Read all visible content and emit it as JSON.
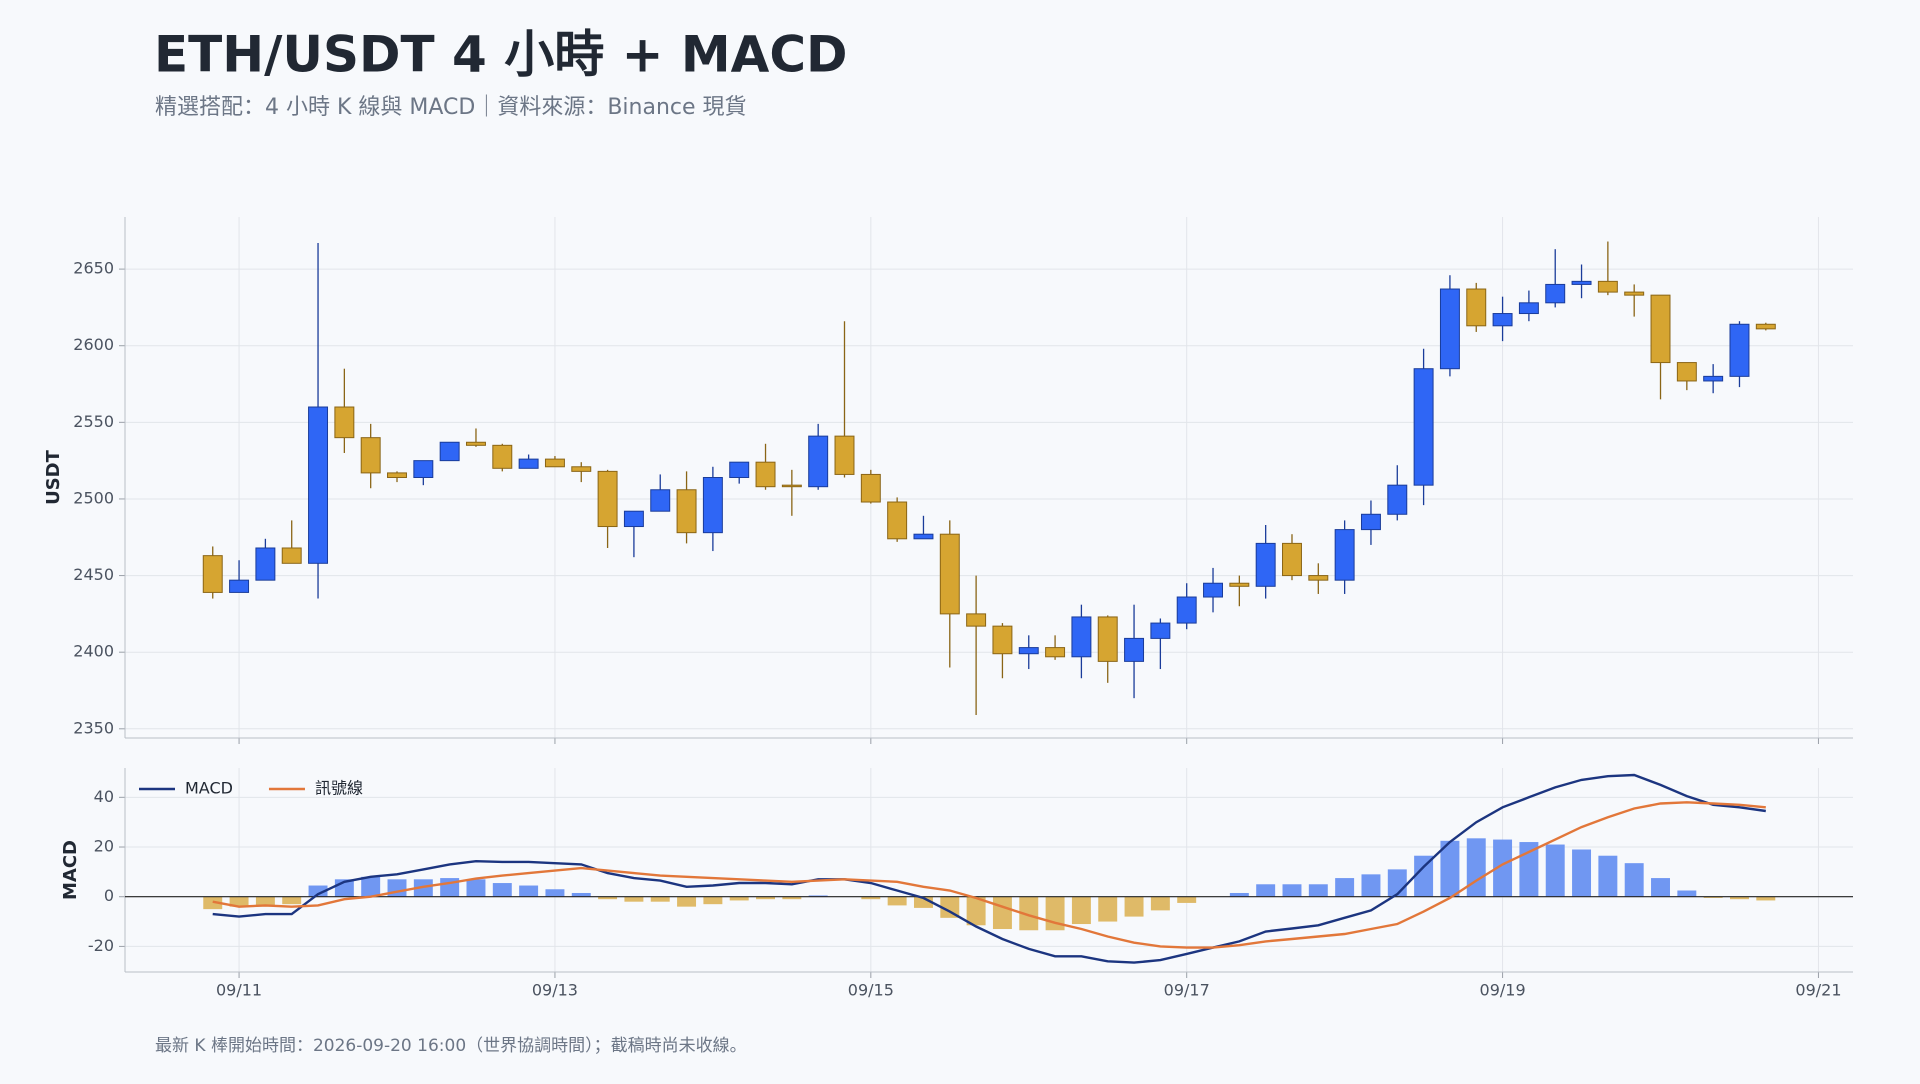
{
  "title": "ETH/USDT 4 小時 + MACD",
  "subtitle": "精選搭配：4 小時 K 線與 MACD｜資料來源：Binance 現貨",
  "footnote": "最新 K 棒開始時間：2026-09-20 16:00（世界協調時間）；截稿時尚未收線。",
  "chart_data": [
    {
      "type": "candlestick",
      "ylabel": "USDT",
      "x": [
        "09/10 20:00",
        "09/11 00:00",
        "09/11 04:00",
        "09/11 08:00",
        "09/11 12:00",
        "09/11 16:00",
        "09/11 20:00",
        "09/12 00:00",
        "09/12 04:00",
        "09/12 08:00",
        "09/12 12:00",
        "09/12 16:00",
        "09/12 20:00",
        "09/13 00:00",
        "09/13 04:00",
        "09/13 08:00",
        "09/13 12:00",
        "09/13 16:00",
        "09/13 20:00",
        "09/14 00:00",
        "09/14 04:00",
        "09/14 08:00",
        "09/14 12:00",
        "09/14 16:00",
        "09/14 20:00",
        "09/15 00:00",
        "09/15 04:00",
        "09/15 08:00",
        "09/15 12:00",
        "09/15 16:00",
        "09/15 20:00",
        "09/16 00:00",
        "09/16 04:00",
        "09/16 08:00",
        "09/16 12:00",
        "09/16 16:00",
        "09/16 20:00",
        "09/17 00:00",
        "09/17 04:00",
        "09/17 08:00",
        "09/17 12:00",
        "09/17 16:00",
        "09/17 20:00",
        "09/18 00:00",
        "09/18 04:00",
        "09/18 08:00",
        "09/18 12:00",
        "09/18 16:00",
        "09/18 20:00",
        "09/19 00:00",
        "09/19 04:00",
        "09/19 08:00",
        "09/19 12:00",
        "09/19 16:00",
        "09/19 20:00",
        "09/20 00:00",
        "09/20 04:00",
        "09/20 08:00",
        "09/20 12:00",
        "09/20 16:00"
      ],
      "open": [
        2463,
        2439,
        2447,
        2468,
        2458,
        2560,
        2540,
        2517,
        2514,
        2525,
        2537,
        2535,
        2520,
        2526,
        2521,
        2518,
        2482,
        2492,
        2506,
        2478,
        2514,
        2524,
        2509,
        2508,
        2541,
        2516,
        2498,
        2474,
        2477,
        2425,
        2417,
        2399,
        2403,
        2397,
        2423,
        2394,
        2409,
        2419,
        2436,
        2445,
        2443,
        2471,
        2450,
        2447,
        2480,
        2490,
        2509,
        2585,
        2637,
        2613,
        2621,
        2628,
        2640,
        2642,
        2635,
        2633,
        2589,
        2577,
        2580,
        2614
      ],
      "high": [
        2469,
        2460,
        2474,
        2486,
        2667,
        2585,
        2549,
        2518,
        2525,
        2537,
        2546,
        2536,
        2529,
        2528,
        2524,
        2519,
        2492,
        2516,
        2518,
        2521,
        2524,
        2536,
        2519,
        2549,
        2616,
        2519,
        2501,
        2489,
        2486,
        2450,
        2419,
        2411,
        2411,
        2431,
        2424,
        2431,
        2422,
        2445,
        2455,
        2450,
        2483,
        2477,
        2458,
        2486,
        2499,
        2522,
        2598,
        2646,
        2641,
        2632,
        2636,
        2663,
        2653,
        2668,
        2640,
        2633,
        2589,
        2588,
        2616,
        2615
      ],
      "low": [
        2435,
        2439,
        2447,
        2458,
        2435,
        2530,
        2507,
        2511,
        2509,
        2525,
        2534,
        2518,
        2520,
        2521,
        2511,
        2468,
        2462,
        2492,
        2471,
        2466,
        2510,
        2506,
        2489,
        2506,
        2514,
        2497,
        2472,
        2474,
        2390,
        2359,
        2383,
        2389,
        2395,
        2383,
        2380,
        2370,
        2389,
        2415,
        2426,
        2430,
        2435,
        2447,
        2438,
        2438,
        2470,
        2486,
        2496,
        2580,
        2609,
        2603,
        2616,
        2625,
        2631,
        2633,
        2619,
        2565,
        2571,
        2569,
        2573,
        2610
      ],
      "close": [
        2439,
        2447,
        2468,
        2458,
        2560,
        2540,
        2517,
        2514,
        2525,
        2537,
        2535,
        2520,
        2526,
        2521,
        2518,
        2482,
        2492,
        2506,
        2478,
        2514,
        2524,
        2508,
        2508,
        2541,
        2516,
        2498,
        2474,
        2477,
        2425,
        2417,
        2399,
        2403,
        2397,
        2423,
        2394,
        2409,
        2419,
        2436,
        2445,
        2443,
        2471,
        2450,
        2447,
        2480,
        2490,
        2509,
        2585,
        2637,
        2613,
        2621,
        2628,
        2640,
        2642,
        2635,
        2633,
        2589,
        2577,
        2580,
        2614,
        2611
      ],
      "up_color": "#2f66f5",
      "down_color": "#d6a531",
      "ylim": [
        2344,
        2684
      ],
      "yticks": [
        2350,
        2400,
        2450,
        2500,
        2550,
        2600,
        2650
      ],
      "xlim": [
        "09/10 06:40",
        "09/21 05:15"
      ],
      "grid": true
    },
    {
      "type": "macd",
      "ylabel": "MACD",
      "series": [
        {
          "name": "MACD",
          "color": "#1c3580",
          "values": [
            -7,
            -8,
            -7,
            -7,
            1,
            6,
            8,
            9,
            11,
            13,
            14.3,
            14,
            14,
            13.5,
            13,
            9.5,
            7.5,
            6.5,
            4,
            4.5,
            5.5,
            5.5,
            5,
            7,
            7,
            5.5,
            2.5,
            -0.5,
            -6,
            -12,
            -17,
            -21,
            -24,
            -24,
            -26,
            -26.5,
            -25.5,
            -23,
            -20.5,
            -18,
            -14,
            -12.8,
            -11.5,
            -8.5,
            -5.5,
            1,
            12,
            22,
            30,
            36,
            40,
            44,
            47,
            48.5,
            49,
            45,
            40.5,
            37,
            36,
            34.5
          ]
        },
        {
          "name": "訊號線",
          "color": "#e2773a",
          "values": [
            -2,
            -4,
            -3.5,
            -4,
            -3.5,
            -1,
            0,
            2,
            4,
            5.5,
            7.3,
            8.5,
            9.5,
            10.5,
            11.5,
            10.5,
            9.5,
            8.5,
            8,
            7.5,
            7,
            6.5,
            6,
            6.5,
            7,
            6.5,
            6,
            4,
            2.5,
            -0.5,
            -4,
            -7.5,
            -10.5,
            -13,
            -16,
            -18.5,
            -20,
            -20.5,
            -20.5,
            -19.5,
            -18,
            -17,
            -16,
            -15,
            -13,
            -11,
            -6,
            -0.5,
            6.5,
            13,
            18,
            23,
            28,
            32,
            35.5,
            37.5,
            38,
            37.5,
            37,
            36
          ]
        }
      ],
      "histogram": {
        "values": [
          -5,
          -4,
          -4,
          -3,
          4.5,
          7,
          8,
          7,
          7,
          7.5,
          7,
          5.5,
          4.5,
          3,
          1.5,
          -1,
          -2,
          -2,
          -4,
          -3,
          -1.5,
          -1,
          -1,
          0.5,
          0,
          -1,
          -3.5,
          -4.5,
          -8.5,
          -11.5,
          -13,
          -13.5,
          -13.5,
          -11,
          -10,
          -8,
          -5.5,
          -2.5,
          0,
          1.5,
          5,
          5,
          5,
          7.5,
          9,
          11,
          16.5,
          22.5,
          23.5,
          23,
          22,
          21,
          19,
          16.5,
          13.5,
          7.5,
          2.5,
          -0.5,
          -1,
          -1.5
        ],
        "up_color": "#7097f2",
        "down_color": "#dfba68"
      },
      "ylim": [
        -30.3,
        51.8
      ],
      "yticks": [
        -20,
        0,
        20,
        40
      ],
      "xticks": [
        "09/11",
        "09/13",
        "09/15",
        "09/17",
        "09/19",
        "09/21"
      ],
      "legend": "upper left",
      "grid": true,
      "zero_line": true
    }
  ]
}
